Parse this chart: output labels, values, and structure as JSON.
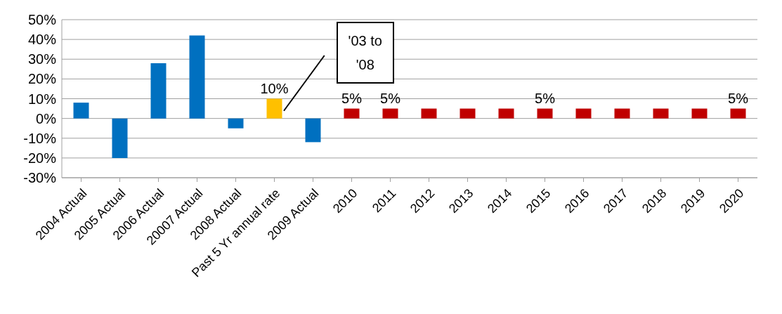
{
  "chart_data": {
    "type": "bar",
    "categories": [
      "2004 Actual",
      "2005 Actual",
      "2006 Actual",
      "20007 Actual",
      "2008 Actual",
      "Past 5 Yr annual rate",
      "2009 Actual",
      "2010",
      "2011",
      "2012",
      "2013",
      "2014",
      "2015",
      "2016",
      "2017",
      "2018",
      "2019",
      "2020"
    ],
    "values": [
      8,
      -20,
      28,
      42,
      -5,
      10,
      -12,
      5,
      5,
      5,
      5,
      5,
      5,
      5,
      5,
      5,
      5,
      5
    ],
    "colors": [
      "#0070c0",
      "#0070c0",
      "#0070c0",
      "#0070c0",
      "#0070c0",
      "#ffc000",
      "#0070c0",
      "#c00000",
      "#c00000",
      "#c00000",
      "#c00000",
      "#c00000",
      "#c00000",
      "#c00000",
      "#c00000",
      "#c00000",
      "#c00000",
      "#c00000"
    ],
    "value_labels": [
      null,
      null,
      null,
      null,
      null,
      "10%",
      null,
      "5%",
      "5%",
      null,
      null,
      null,
      "5%",
      null,
      null,
      null,
      null,
      "5%"
    ],
    "ylim": [
      -30,
      50
    ],
    "yticks": [
      {
        "value": -30,
        "label": "-30%"
      },
      {
        "value": -20,
        "label": "-20%"
      },
      {
        "value": -10,
        "label": "-10%"
      },
      {
        "value": 0,
        "label": "0%"
      },
      {
        "value": 10,
        "label": "10%"
      },
      {
        "value": 20,
        "label": "20%"
      },
      {
        "value": 30,
        "label": "30%"
      },
      {
        "value": 40,
        "label": "40%"
      },
      {
        "value": 50,
        "label": "50%"
      }
    ],
    "grid": "y",
    "legend": false,
    "annotations": [
      "'03 to '08"
    ]
  }
}
